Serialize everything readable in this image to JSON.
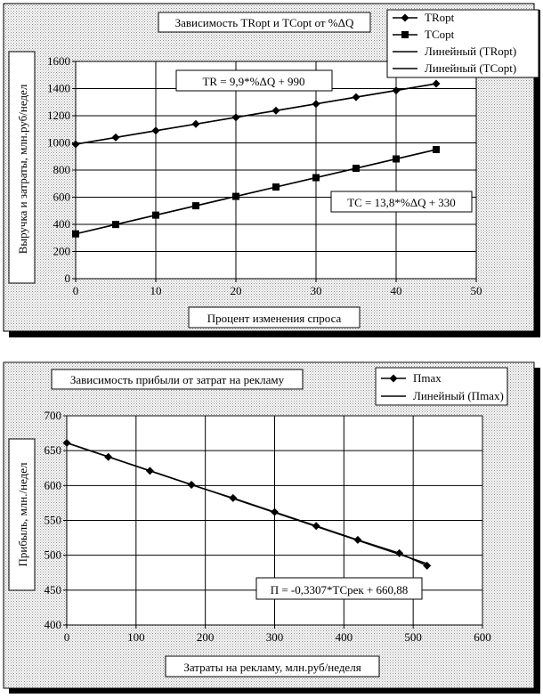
{
  "chart_data": [
    {
      "type": "line",
      "title": "Зависимость TRopt и TCopt от %ΔQ",
      "xlabel": "Процент изменения спроса",
      "ylabel": "Выручка и затраты, млн.руб/недел",
      "xlim": [
        0,
        50
      ],
      "ylim": [
        0,
        1600
      ],
      "xticks": [
        0,
        10,
        20,
        30,
        40,
        50
      ],
      "yticks": [
        0,
        200,
        400,
        600,
        800,
        1000,
        1200,
        1400,
        1600
      ],
      "grid": true,
      "legend_position": "top-right",
      "legend": [
        "TRopt",
        "TCopt",
        "Линейный (TRopt)",
        "Линейный (TCopt)"
      ],
      "series": [
        {
          "name": "TRopt",
          "marker": "diamond",
          "x": [
            0,
            5,
            10,
            15,
            20,
            25,
            30,
            35,
            40,
            45
          ],
          "y": [
            990,
            1040,
            1090,
            1139,
            1188,
            1238,
            1287,
            1337,
            1386,
            1436
          ]
        },
        {
          "name": "TCopt",
          "marker": "square",
          "x": [
            0,
            5,
            10,
            15,
            20,
            25,
            30,
            35,
            40,
            45
          ],
          "y": [
            330,
            399,
            468,
            537,
            606,
            675,
            744,
            813,
            882,
            951
          ]
        }
      ],
      "annotations": [
        "TR = 9,9*%ΔQ + 990",
        "TC = 13,8*%ΔQ + 330"
      ]
    },
    {
      "type": "line",
      "title": "Зависимость прибыли от затрат на рекламу",
      "xlabel": "Затраты на рекламу, млн.руб/неделя",
      "ylabel": "Прибыль, млн./недел",
      "xlim": [
        0,
        600
      ],
      "ylim": [
        400,
        700
      ],
      "xticks": [
        0,
        100,
        200,
        300,
        400,
        500,
        600
      ],
      "yticks": [
        400,
        450,
        500,
        550,
        600,
        650,
        700
      ],
      "grid": true,
      "legend_position": "top-right",
      "legend": [
        "Пmax",
        "Линейный (Пmax)"
      ],
      "series": [
        {
          "name": "Пmax",
          "marker": "diamond",
          "x": [
            0,
            60,
            120,
            180,
            240,
            300,
            360,
            420,
            480,
            520
          ],
          "y": [
            661,
            641,
            621,
            601,
            582,
            562,
            542,
            522,
            503,
            485
          ]
        }
      ],
      "annotations": [
        "П = -0,3307*TCрек + 660,88"
      ]
    }
  ]
}
